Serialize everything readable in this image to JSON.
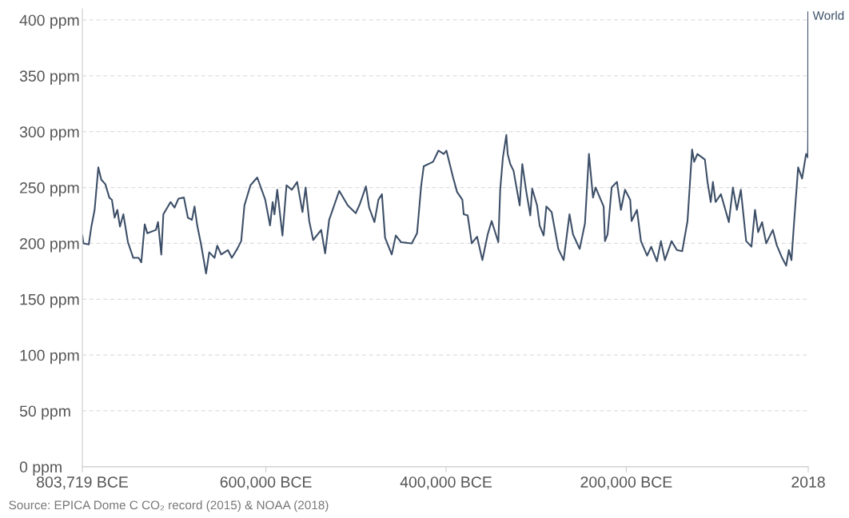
{
  "chart_data": {
    "type": "line",
    "x": [
      -803719,
      -802500,
      -796600,
      -793700,
      -790100,
      -786000,
      -782700,
      -778200,
      -773800,
      -770900,
      -767900,
      -764900,
      -762000,
      -758200,
      -753100,
      -747200,
      -741300,
      -738300,
      -734500,
      -731600,
      -722100,
      -719700,
      -716100,
      -713800,
      -705800,
      -701400,
      -697000,
      -691000,
      -686600,
      -682100,
      -679200,
      -676200,
      -671700,
      -666400,
      -662900,
      -657000,
      -654000,
      -649600,
      -642200,
      -637800,
      -631800,
      -627400,
      -623800,
      -617100,
      -609600,
      -600700,
      -595400,
      -592500,
      -590500,
      -587400,
      -581600,
      -577100,
      -571200,
      -565300,
      -559400,
      -555900,
      -551900,
      -547500,
      -538600,
      -534200,
      -529800,
      -518600,
      -509100,
      -500200,
      -495800,
      -488900,
      -485400,
      -479500,
      -475100,
      -471200,
      -467700,
      -460300,
      -455800,
      -449900,
      -438100,
      -432200,
      -427700,
      -424800,
      -414400,
      -408500,
      -402600,
      -399600,
      -392200,
      -387800,
      -381900,
      -380400,
      -376000,
      -371500,
      -365600,
      -359700,
      -353800,
      -349400,
      -342000,
      -339900,
      -336900,
      -333100,
      -331600,
      -328700,
      -325100,
      -318300,
      -315400,
      -310900,
      -306500,
      -304400,
      -299000,
      -296100,
      -291700,
      -288700,
      -282800,
      -275400,
      -269500,
      -263000,
      -259100,
      -251700,
      -245800,
      -241400,
      -236900,
      -234000,
      -225100,
      -223600,
      -220700,
      -216200,
      -210300,
      -205900,
      -201400,
      -195600,
      -194100,
      -188100,
      -183700,
      -176800,
      -172300,
      -166000,
      -161500,
      -157100,
      -149700,
      -143800,
      -137900,
      -132000,
      -126900,
      -124600,
      -121000,
      -112700,
      -109800,
      -106200,
      -103800,
      -100800,
      -94900,
      -86100,
      -81600,
      -77200,
      -72800,
      -66900,
      -61000,
      -57100,
      -53600,
      -49200,
      -44700,
      -37300,
      -32800,
      -27000,
      -22500,
      -19500,
      -16600,
      -13600,
      -9200,
      -4800,
      -400,
      1700,
      1900,
      2018
    ],
    "series": [
      {
        "name": "World",
        "color": "#3d4f68",
        "values": [
          207,
          200,
          199,
          215,
          230,
          268,
          257,
          253,
          241,
          239,
          223,
          230,
          215,
          226,
          201,
          187,
          187,
          183,
          217,
          209,
          212,
          219,
          190,
          226,
          237,
          232,
          240,
          241,
          223,
          221,
          233,
          216,
          198,
          173,
          192,
          187,
          198,
          190,
          194,
          187,
          195,
          202,
          234,
          252,
          259,
          239,
          216,
          237,
          226,
          248,
          207,
          252,
          248,
          255,
          228,
          250,
          220,
          203,
          212,
          191,
          221,
          247,
          234,
          227,
          235,
          251,
          232,
          219,
          239,
          244,
          205,
          190,
          207,
          201,
          200,
          209,
          251,
          269,
          273,
          283,
          280,
          283,
          259,
          246,
          239,
          226,
          225,
          200,
          206,
          185,
          208,
          220,
          201,
          248,
          277,
          297,
          280,
          271,
          265,
          234,
          271,
          246,
          225,
          249,
          234,
          216,
          207,
          233,
          228,
          195,
          185,
          226,
          208,
          195,
          218,
          280,
          241,
          250,
          233,
          202,
          208,
          250,
          255,
          230,
          248,
          239,
          220,
          230,
          202,
          189,
          197,
          184,
          202,
          185,
          202,
          194,
          193,
          220,
          284,
          273,
          280,
          275,
          255,
          237,
          255,
          237,
          244,
          219,
          250,
          230,
          248,
          202,
          197,
          230,
          210,
          219,
          200,
          212,
          198,
          187,
          180,
          194,
          185,
          220,
          268,
          258,
          280,
          277,
          296,
          407
        ]
      }
    ],
    "xlim": [
      -803719,
      2018
    ],
    "xticks": [
      {
        "value": -803719,
        "label": "803,719 BCE"
      },
      {
        "value": -600000,
        "label": "600,000 BCE"
      },
      {
        "value": -400000,
        "label": "400,000 BCE"
      },
      {
        "value": -200000,
        "label": "200,000 BCE"
      },
      2018
    ],
    "ylim": [
      0,
      410
    ],
    "yticks": [
      {
        "value": 0,
        "label": "0 ppm"
      },
      {
        "value": 50,
        "label": "50 ppm"
      },
      {
        "value": 100,
        "label": "100 ppm"
      },
      {
        "value": 150,
        "label": "150 ppm"
      },
      {
        "value": 200,
        "label": "200 ppm"
      },
      {
        "value": 250,
        "label": "250 ppm"
      },
      {
        "value": 300,
        "label": "300 ppm"
      },
      {
        "value": 350,
        "label": "350 ppm"
      },
      {
        "value": 400,
        "label": "400 ppm"
      }
    ],
    "grid": "y",
    "line_style": "solid",
    "annotations": [
      "Source: EPICA Dome C CO₂ record (2015) & NOAA (2018)"
    ]
  }
}
